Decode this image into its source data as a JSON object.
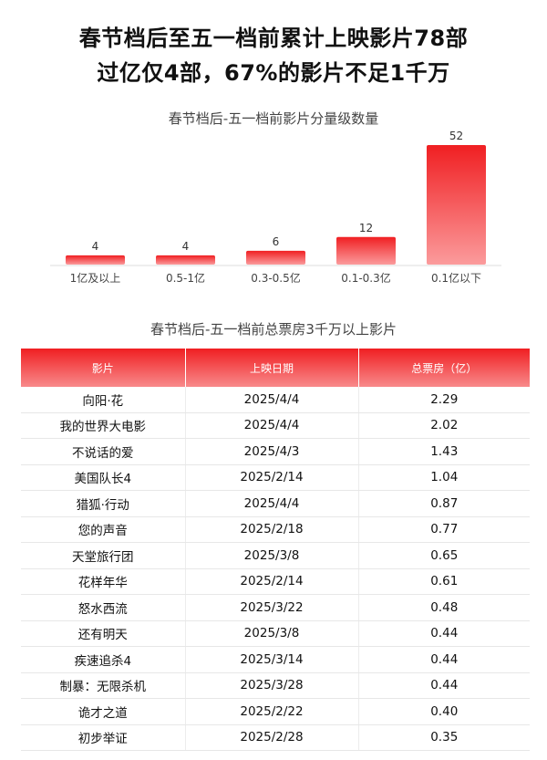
{
  "headline": {
    "line1": "春节档后至五一档前累计上映影片78部",
    "line2": "过亿仅4部，67%的影片不足1千万"
  },
  "chart_title": "春节档后-五一档前影片分量级数量",
  "table_title": "春节档后-五一档前总票房3千万以上影片",
  "colors": {
    "accent_red": "#f01f22",
    "accent_light": "#fb9b9c"
  },
  "chart_data": {
    "type": "bar",
    "title": "春节档后-五一档前影片分量级数量",
    "categories": [
      "1亿及以上",
      "0.5-1亿",
      "0.3-0.5亿",
      "0.1-0.3亿",
      "0.1亿以下"
    ],
    "values": [
      4,
      4,
      6,
      12,
      52
    ],
    "data_labels": true,
    "grid": false
  },
  "table": {
    "headers": [
      "影片",
      "上映日期",
      "总票房（亿）"
    ],
    "rows": [
      [
        "向阳·花",
        "2025/4/4",
        "2.29"
      ],
      [
        "我的世界大电影",
        "2025/4/4",
        "2.02"
      ],
      [
        "不说话的爱",
        "2025/4/3",
        "1.43"
      ],
      [
        "美国队长4",
        "2025/2/14",
        "1.04"
      ],
      [
        "猎狐·行动",
        "2025/4/4",
        "0.87"
      ],
      [
        "您的声音",
        "2025/2/18",
        "0.77"
      ],
      [
        "天堂旅行团",
        "2025/3/8",
        "0.65"
      ],
      [
        "花样年华",
        "2025/2/14",
        "0.61"
      ],
      [
        "怒水西流",
        "2025/3/22",
        "0.48"
      ],
      [
        "还有明天",
        "2025/3/8",
        "0.44"
      ],
      [
        "疾速追杀4",
        "2025/3/14",
        "0.44"
      ],
      [
        "制暴：无限杀机",
        "2025/3/28",
        "0.44"
      ],
      [
        "诡才之道",
        "2025/2/22",
        "0.40"
      ],
      [
        "初步举证",
        "2025/2/28",
        "0.35"
      ]
    ]
  }
}
